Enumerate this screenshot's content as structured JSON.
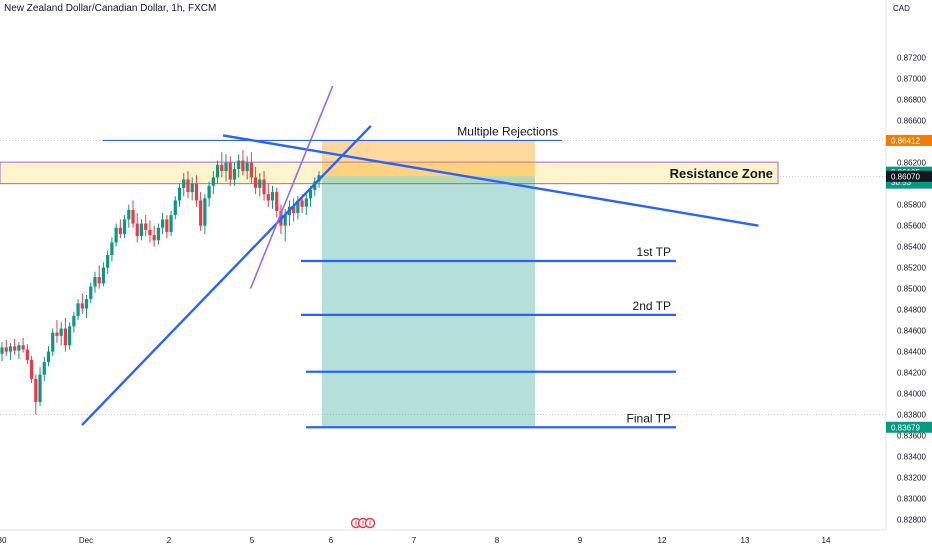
{
  "symbol_title": "New Zealand Dollar/Canadian Dollar, 1h, FXCM",
  "currency": "CAD",
  "chart_data": {
    "type": "candlestick",
    "ylim": [
      0.827,
      0.8775
    ],
    "price_ticks": [
      "0.87200",
      "0.87000",
      "0.86800",
      "0.86600",
      "0.86200",
      "0.86000",
      "0.85800",
      "0.85600",
      "0.85400",
      "0.85200",
      "0.85000",
      "0.84800",
      "0.84600",
      "0.84400",
      "0.84200",
      "0.84000",
      "0.83800",
      "0.83600",
      "0.83400",
      "0.83200",
      "0.83000",
      "0.82800"
    ],
    "price_tick_values": [
      0.872,
      0.87,
      0.868,
      0.866,
      0.862,
      0.86,
      0.858,
      0.856,
      0.854,
      0.852,
      0.85,
      0.848,
      0.846,
      0.844,
      0.842,
      0.84,
      0.838,
      0.836,
      0.834,
      0.832,
      0.83,
      0.828
    ],
    "time_ticks": [
      "30",
      "Dec",
      "2",
      "5",
      "6",
      "7",
      "8",
      "9",
      "12",
      "13",
      "14"
    ],
    "price_badges": [
      {
        "label": "0.86412",
        "value": 0.86412,
        "color": "#f57c00"
      },
      {
        "label": "0.86105",
        "sub": "30:53",
        "value": 0.86105,
        "color": "#089981"
      },
      {
        "label": "0.86070",
        "value": 0.8607,
        "color": "#131722"
      },
      {
        "label": "0.83679",
        "value": 0.83679,
        "color": "#089981"
      }
    ],
    "resistance_zone": {
      "label": "Resistance Zone",
      "top": 0.86205,
      "bottom": 0.86
    },
    "short_position": {
      "entry": 0.8607,
      "stop": 0.86412,
      "target": 0.83679
    },
    "annotations": [
      {
        "text": "Multiple Rejections",
        "value": 0.86412
      },
      {
        "text": "1st TP",
        "value": 0.85263
      },
      {
        "text": "2nd TP",
        "value": 0.8475
      },
      {
        "text": "",
        "value": 0.84208
      },
      {
        "text": "Final TP",
        "value": 0.83679
      }
    ],
    "trendlines": [
      {
        "name": "descending",
        "from": [
          -1.3,
          0.8646
        ],
        "to": [
          5.15,
          0.856
        ]
      },
      {
        "name": "ascending",
        "from": [
          -3.0,
          0.837
        ],
        "to": [
          0.48,
          0.8655
        ]
      },
      {
        "name": "steep",
        "from": [
          -0.97,
          0.85
        ],
        "to": [
          0.02,
          0.8693
        ]
      }
    ],
    "candles": [
      [
        0.8438,
        0.8449,
        0.8431,
        0.8444
      ],
      [
        0.8444,
        0.8451,
        0.8436,
        0.844
      ],
      [
        0.844,
        0.8448,
        0.8432,
        0.8445
      ],
      [
        0.8445,
        0.8452,
        0.8437,
        0.8441
      ],
      [
        0.8441,
        0.8449,
        0.8433,
        0.8446
      ],
      [
        0.8446,
        0.8453,
        0.8439,
        0.8442
      ],
      [
        0.8442,
        0.8447,
        0.8428,
        0.8432
      ],
      [
        0.8432,
        0.8436,
        0.841,
        0.8414
      ],
      [
        0.8414,
        0.8418,
        0.838,
        0.8392
      ],
      [
        0.8392,
        0.8425,
        0.8388,
        0.8418
      ],
      [
        0.8418,
        0.8435,
        0.8412,
        0.843
      ],
      [
        0.843,
        0.8445,
        0.8426,
        0.844
      ],
      [
        0.844,
        0.8462,
        0.8436,
        0.8458
      ],
      [
        0.8458,
        0.847,
        0.8448,
        0.8455
      ],
      [
        0.8455,
        0.8468,
        0.8446,
        0.8462
      ],
      [
        0.8462,
        0.8472,
        0.844,
        0.8446
      ],
      [
        0.8446,
        0.8468,
        0.8442,
        0.8464
      ],
      [
        0.8464,
        0.8478,
        0.8458,
        0.8474
      ],
      [
        0.8474,
        0.849,
        0.847,
        0.8486
      ],
      [
        0.8486,
        0.8495,
        0.8476,
        0.8481
      ],
      [
        0.8481,
        0.8494,
        0.8472,
        0.849
      ],
      [
        0.849,
        0.8506,
        0.8486,
        0.8502
      ],
      [
        0.8502,
        0.8516,
        0.8496,
        0.8511
      ],
      [
        0.8511,
        0.8522,
        0.85,
        0.8505
      ],
      [
        0.8505,
        0.8525,
        0.8502,
        0.852
      ],
      [
        0.852,
        0.8536,
        0.8514,
        0.8532
      ],
      [
        0.8532,
        0.8549,
        0.8526,
        0.8544
      ],
      [
        0.8544,
        0.8562,
        0.854,
        0.8558
      ],
      [
        0.8558,
        0.8566,
        0.8548,
        0.8552
      ],
      [
        0.8552,
        0.857,
        0.8548,
        0.8566
      ],
      [
        0.8566,
        0.858,
        0.8558,
        0.8575
      ],
      [
        0.8575,
        0.8584,
        0.8558,
        0.8562
      ],
      [
        0.8562,
        0.8572,
        0.8544,
        0.855
      ],
      [
        0.855,
        0.8566,
        0.8546,
        0.8562
      ],
      [
        0.8562,
        0.857,
        0.855,
        0.8556
      ],
      [
        0.8556,
        0.8565,
        0.8544,
        0.8551
      ],
      [
        0.8551,
        0.856,
        0.854,
        0.8546
      ],
      [
        0.8546,
        0.8562,
        0.8542,
        0.8558
      ],
      [
        0.8558,
        0.8572,
        0.8552,
        0.8566
      ],
      [
        0.8566,
        0.857,
        0.8548,
        0.8554
      ],
      [
        0.8554,
        0.8574,
        0.855,
        0.857
      ],
      [
        0.857,
        0.8588,
        0.8566,
        0.8584
      ],
      [
        0.8584,
        0.86,
        0.8578,
        0.8596
      ],
      [
        0.8596,
        0.861,
        0.8588,
        0.8604
      ],
      [
        0.8604,
        0.8612,
        0.8586,
        0.8592
      ],
      [
        0.8592,
        0.8606,
        0.8584,
        0.86
      ],
      [
        0.86,
        0.8608,
        0.8578,
        0.8584
      ],
      [
        0.8584,
        0.8592,
        0.8555,
        0.856
      ],
      [
        0.856,
        0.859,
        0.8552,
        0.8586
      ],
      [
        0.8586,
        0.8602,
        0.8578,
        0.8598
      ],
      [
        0.8598,
        0.8612,
        0.859,
        0.8606
      ],
      [
        0.8606,
        0.8622,
        0.86,
        0.8618
      ],
      [
        0.8618,
        0.863,
        0.8606,
        0.8612
      ],
      [
        0.8612,
        0.8628,
        0.8602,
        0.862
      ],
      [
        0.862,
        0.8626,
        0.8598,
        0.8604
      ],
      [
        0.8604,
        0.862,
        0.8598,
        0.8614
      ],
      [
        0.8614,
        0.8628,
        0.8606,
        0.8622
      ],
      [
        0.8622,
        0.8632,
        0.8608,
        0.8612
      ],
      [
        0.8612,
        0.8626,
        0.8604,
        0.862
      ],
      [
        0.862,
        0.863,
        0.86,
        0.8606
      ],
      [
        0.8606,
        0.8616,
        0.859,
        0.8596
      ],
      [
        0.8596,
        0.861,
        0.8588,
        0.8604
      ],
      [
        0.8604,
        0.8612,
        0.8584,
        0.859
      ],
      [
        0.859,
        0.86,
        0.8578,
        0.8584
      ],
      [
        0.8584,
        0.8598,
        0.8576,
        0.8592
      ],
      [
        0.8592,
        0.8596,
        0.8568,
        0.8574
      ],
      [
        0.8574,
        0.858,
        0.8552,
        0.856
      ],
      [
        0.856,
        0.8576,
        0.8545,
        0.857
      ],
      [
        0.857,
        0.8584,
        0.856,
        0.8578
      ],
      [
        0.8578,
        0.8586,
        0.8564,
        0.8572
      ],
      [
        0.8572,
        0.8588,
        0.8566,
        0.8584
      ],
      [
        0.8584,
        0.859,
        0.8572,
        0.8578
      ],
      [
        0.8578,
        0.859,
        0.857,
        0.8586
      ],
      [
        0.8586,
        0.8598,
        0.8578,
        0.8594
      ],
      [
        0.8594,
        0.8606,
        0.8588,
        0.8602
      ],
      [
        0.8602,
        0.8612,
        0.8596,
        0.8608
      ]
    ]
  }
}
